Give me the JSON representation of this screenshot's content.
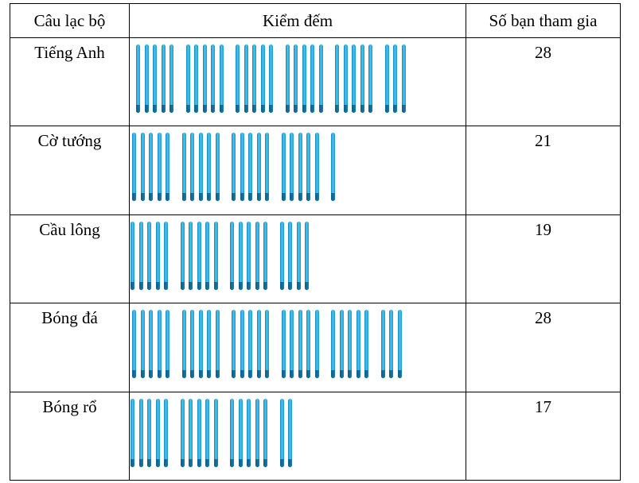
{
  "table": {
    "headers": {
      "club": "Câu lạc bộ",
      "tally": "Kiểm đếm",
      "count": "Số bạn tham gia"
    },
    "rows": [
      {
        "club": "Tiếng Anh",
        "count": "28",
        "sticks": 28
      },
      {
        "club": "Cờ tướng",
        "count": "21",
        "sticks": 21
      },
      {
        "club": "Cầu lông",
        "count": "19",
        "sticks": 19
      },
      {
        "club": "Bóng đá",
        "count": "28",
        "sticks": 28
      },
      {
        "club": "Bóng rổ",
        "count": "17",
        "sticks": 17
      }
    ]
  },
  "colors": {
    "stick": "#1b9bd3",
    "border": "#000000"
  },
  "icons": {
    "tally": "tally-stick-icon"
  }
}
